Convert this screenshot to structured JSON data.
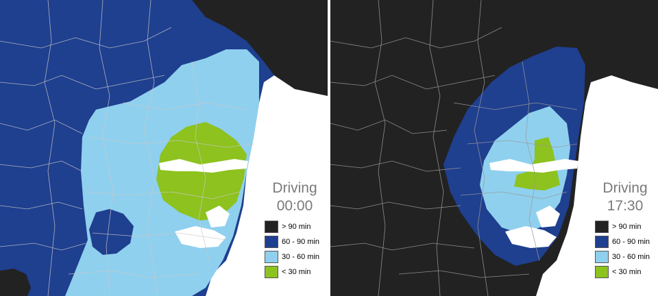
{
  "legend": {
    "categories": [
      {
        "label": "> 90 min",
        "color": "#222222"
      },
      {
        "label": "60 - 90 min",
        "color": "#1f3f8f"
      },
      {
        "label": "30 - 60 min",
        "color": "#8fd0ee"
      },
      {
        "label": "< 30 min",
        "color": "#8dc21f"
      }
    ]
  },
  "panels": [
    {
      "title": "Driving",
      "time": "00:00"
    },
    {
      "title": "Driving",
      "time": "17:30"
    }
  ],
  "colors": {
    "water": "#ffffff",
    "boundary": "#c8c8c8",
    "boundary_light": "#e0e0e0"
  }
}
